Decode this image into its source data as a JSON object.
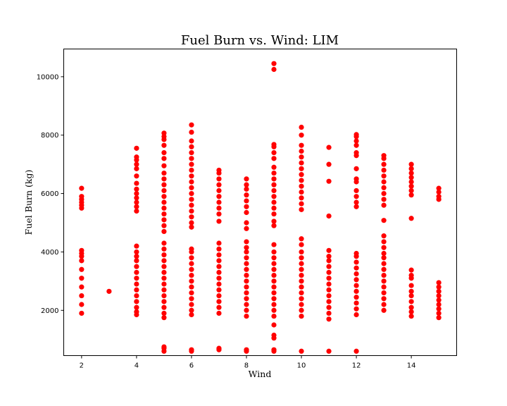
{
  "chart_data": {
    "type": "scatter",
    "title": "Fuel Burn vs. Wind: LIM",
    "xlabel": "Wind",
    "ylabel": "Fuel Burn (kg)",
    "xlim": [
      1.35,
      15.65
    ],
    "ylim": [
      450,
      10950
    ],
    "xticks": [
      2,
      4,
      6,
      8,
      10,
      12,
      14
    ],
    "yticks": [
      2000,
      4000,
      6000,
      8000,
      10000
    ],
    "grid": false,
    "marker_color": "#ff0000",
    "series": [
      {
        "clusters": [
          {
            "x": 2,
            "y": [
              1900,
              2200,
              2500,
              2800,
              3100,
              3400,
              3700,
              3850,
              3950,
              4050,
              5500,
              5600,
              5700,
              5800,
              5900,
              6180
            ]
          },
          {
            "x": 3,
            "y": [
              2650
            ]
          },
          {
            "x": 4,
            "y": [
              1850,
              1950,
              2100,
              2300,
              2500,
              2700,
              2900,
              3100,
              3300,
              3500,
              3700,
              3850,
              4000,
              4200,
              5400,
              5550,
              5700,
              5850,
              6000,
              6150,
              6350,
              6600,
              6850,
              7000,
              7150,
              7250,
              7550
            ]
          },
          {
            "x": 5,
            "y": [
              600,
              700,
              750,
              1750,
              1900,
              2100,
              2300,
              2500,
              2700,
              2900,
              3100,
              3300,
              3500,
              3700,
              3900,
              4100,
              4300,
              4700,
              4900,
              5100,
              5300,
              5500,
              5700,
              5900,
              6100,
              6300,
              6500,
              6700,
              6950,
              7200,
              7400,
              7650,
              7850,
              7950,
              8070
            ]
          },
          {
            "x": 6,
            "y": [
              600,
              650,
              1850,
              2000,
              2200,
              2400,
              2600,
              2800,
              3000,
              3200,
              3400,
              3600,
              3800,
              4000,
              4100,
              4850,
              5000,
              5200,
              5400,
              5600,
              5800,
              6000,
              6200,
              6400,
              6600,
              6800,
              7000,
              7200,
              7400,
              7600,
              7800,
              8100,
              8350
            ]
          },
          {
            "x": 7,
            "y": [
              650,
              700,
              1900,
              2100,
              2300,
              2500,
              2700,
              2900,
              3100,
              3300,
              3500,
              3700,
              3900,
              4100,
              4300,
              5050,
              5300,
              5500,
              5700,
              5900,
              6100,
              6300,
              6500,
              6700,
              6800
            ]
          },
          {
            "x": 8,
            "y": [
              600,
              650,
              1800,
              2000,
              2200,
              2400,
              2600,
              2800,
              3000,
              3200,
              3400,
              3600,
              3800,
              4000,
              4150,
              4350,
              4800,
              5000,
              5350,
              5550,
              5750,
              5950,
              6150,
              6300,
              6500
            ]
          },
          {
            "x": 9,
            "y": [
              600,
              650,
              1050,
              1150,
              1500,
              1800,
              2000,
              2200,
              2400,
              2600,
              2800,
              3000,
              3200,
              3400,
              3600,
              3800,
              4000,
              4250,
              4900,
              5050,
              5300,
              5500,
              5700,
              5900,
              6100,
              6300,
              6500,
              6700,
              6900,
              7200,
              7400,
              7600,
              7680,
              10250,
              10450
            ]
          },
          {
            "x": 10,
            "y": [
              600,
              1800,
              2000,
              2200,
              2400,
              2600,
              2800,
              3000,
              3200,
              3400,
              3600,
              3800,
              4000,
              4250,
              4450,
              5450,
              5650,
              5850,
              6050,
              6250,
              6450,
              6650,
              6850,
              7050,
              7250,
              7450,
              7650,
              8000,
              8270
            ]
          },
          {
            "x": 11,
            "y": [
              600,
              1700,
              1900,
              2100,
              2300,
              2500,
              2700,
              2900,
              3100,
              3300,
              3500,
              3700,
              3850,
              4050,
              5230,
              6420,
              7000,
              7580
            ]
          },
          {
            "x": 12,
            "y": [
              600,
              1850,
              2050,
              2250,
              2450,
              2650,
              2850,
              3050,
              3250,
              3450,
              3650,
              3850,
              3950,
              5550,
              5700,
              5900,
              6100,
              6400,
              6500,
              6850,
              7300,
              7400,
              7650,
              7800,
              7950,
              8020
            ]
          },
          {
            "x": 13,
            "y": [
              2000,
              2200,
              2400,
              2600,
              2800,
              3000,
              3200,
              3400,
              3600,
              3800,
              3950,
              4150,
              4350,
              4550,
              5080,
              5600,
              5800,
              6000,
              6200,
              6400,
              6600,
              6800,
              7000,
              7200,
              7300
            ]
          },
          {
            "x": 14,
            "y": [
              1800,
              1950,
              2100,
              2300,
              2500,
              2650,
              2850,
              3100,
              3200,
              3380,
              5150,
              5950,
              6100,
              6250,
              6400,
              6550,
              6700,
              6850,
              7000
            ]
          },
          {
            "x": 15,
            "y": [
              1750,
              1900,
              2050,
              2200,
              2350,
              2500,
              2650,
              2800,
              2950,
              5800,
              5900,
              6050,
              6180
            ]
          }
        ]
      }
    ]
  }
}
